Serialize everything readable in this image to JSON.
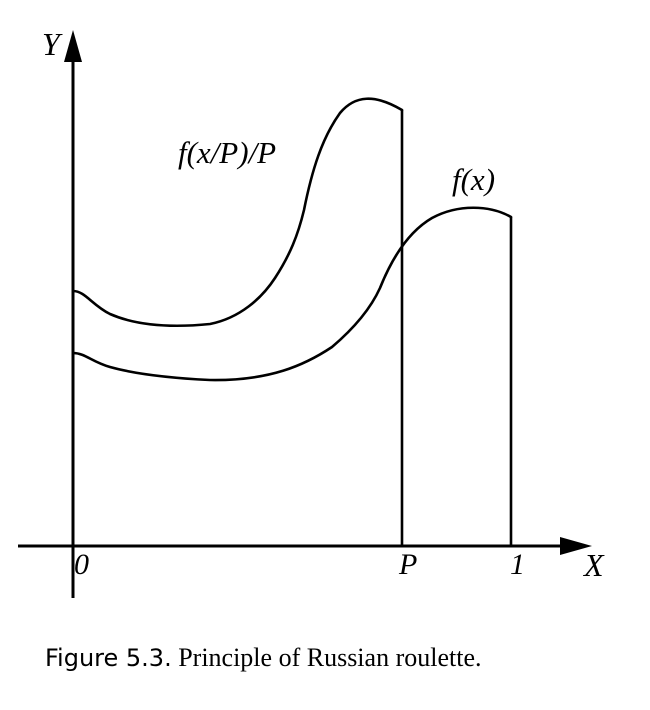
{
  "diagram": {
    "axis_y_label": "Y",
    "axis_x_label": "X",
    "origin_label": "0",
    "tick_p_label": "P",
    "tick_one_label": "1",
    "curve_scaled_label": "f(x/P)/P",
    "curve_original_label": "f(x)"
  },
  "caption": {
    "figure_label": "Figure 5.3.",
    "text": "Principle of Russian roulette."
  }
}
